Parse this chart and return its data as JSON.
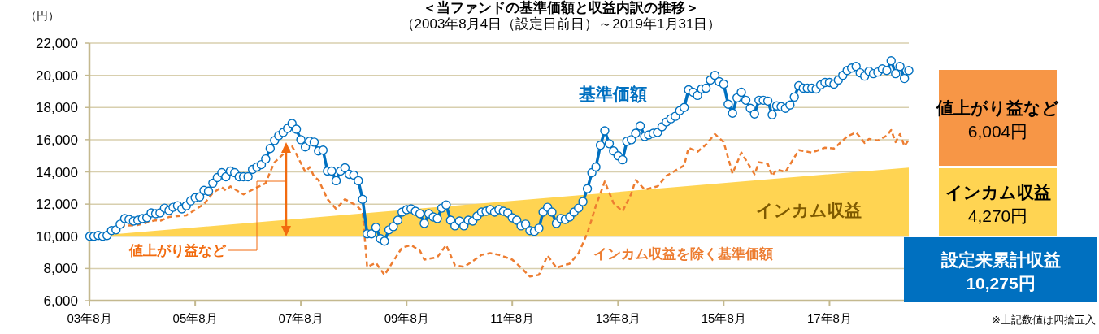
{
  "chart_data": [
    {
      "type": "line",
      "title": "＜当ファンドの基準価額と収益内訳の推移＞",
      "subtitle": "（2003年8月4日（設定日前日）～2019年1月31日）",
      "ylabel": "（円）",
      "xlim": [
        "2003-08",
        "2019-01-31"
      ],
      "xticks": [
        {
          "value": "2003-08",
          "label": "03年8月"
        },
        {
          "value": "2005-08",
          "label": "05年8月"
        },
        {
          "value": "2007-08",
          "label": "07年8月"
        },
        {
          "value": "2009-08",
          "label": "09年8月"
        },
        {
          "value": "2011-08",
          "label": "11年8月"
        },
        {
          "value": "2013-08",
          "label": "13年8月"
        },
        {
          "value": "2015-08",
          "label": "15年8月"
        },
        {
          "value": "2017-08",
          "label": "17年8月"
        }
      ],
      "ylim": [
        6000,
        22000
      ],
      "yticks": [
        {
          "value": 6000,
          "label": "6,000"
        },
        {
          "value": 8000,
          "label": "8,000"
        },
        {
          "value": 10000,
          "label": "10,000"
        },
        {
          "value": 12000,
          "label": "12,000"
        },
        {
          "value": 14000,
          "label": "14,000"
        },
        {
          "value": 16000,
          "label": "16,000"
        },
        {
          "value": 18000,
          "label": "18,000"
        },
        {
          "value": 20000,
          "label": "20,000"
        },
        {
          "value": 22000,
          "label": "22,000"
        }
      ],
      "grid": "y",
      "legend": false,
      "annotations": [
        "値上がり益など"
      ],
      "series": [
        {
          "name": "インカム収益",
          "type": "area",
          "color": "#ffd452",
          "x": [
            "2003-08-04",
            "2019-01-31"
          ],
          "values": [
            10000,
            14270
          ]
        },
        {
          "name": "インカム収益を除く基準価額",
          "color": "#ed7d31",
          "line_style": "dashed",
          "marker": "none",
          "x": [
            "2004-03",
            "2004-07",
            "2004-09",
            "2004-11",
            "2004-12",
            "2005-02",
            "2005-04",
            "2005-06",
            "2005-08",
            "2005-10",
            "2005-12",
            "2006-02",
            "2006-03",
            "2006-04",
            "2006-06",
            "2006-07",
            "2006-09",
            "2006-12",
            "2007-01",
            "2007-02",
            "2007-04",
            "2007-06",
            "2007-07",
            "2007-09",
            "2007-10",
            "2007-11",
            "2007-12",
            "2008-02",
            "2008-04",
            "2008-06",
            "2008-08",
            "2008-09",
            "2008-10",
            "2008-11",
            "2009-01",
            "2009-03",
            "2009-05",
            "2009-07",
            "2009-09",
            "2009-11",
            "2009-12",
            "2010-03",
            "2010-05",
            "2010-07",
            "2010-09",
            "2010-11",
            "2011-01",
            "2011-03",
            "2011-05",
            "2011-08",
            "2011-10",
            "2011-12",
            "2012-02",
            "2012-04",
            "2012-06",
            "2012-09",
            "2012-11",
            "2013-01",
            "2013-03",
            "2013-05",
            "2013-07",
            "2013-09",
            "2013-11",
            "2013-12",
            "2014-02",
            "2014-05",
            "2014-07",
            "2014-11",
            "2014-12",
            "2015-02",
            "2015-04",
            "2015-06",
            "2015-08",
            "2015-10",
            "2015-12",
            "2016-03",
            "2016-04",
            "2016-06",
            "2016-07",
            "2016-08",
            "2016-10",
            "2017-01",
            "2017-04",
            "2017-07",
            "2017-09",
            "2017-12",
            "2018-02",
            "2018-04",
            "2018-05",
            "2018-07",
            "2018-09",
            "2018-10",
            "2018-11",
            "2018-12",
            "2019-01",
            "2019-01-31"
          ],
          "values": [
            10650,
            10700,
            10850,
            11000,
            10950,
            11200,
            11250,
            11300,
            11650,
            12000,
            12700,
            13050,
            12850,
            13100,
            12750,
            12600,
            12900,
            13300,
            14000,
            14600,
            15100,
            15600,
            15100,
            14000,
            14300,
            13700,
            13500,
            12300,
            11700,
            12300,
            12000,
            11800,
            11500,
            8100,
            8350,
            7600,
            8450,
            9300,
            9450,
            9100,
            8550,
            8700,
            9450,
            8200,
            8100,
            8450,
            8850,
            8950,
            8850,
            8550,
            8050,
            7500,
            7600,
            8800,
            8050,
            8300,
            8950,
            10200,
            11900,
            13400,
            12050,
            11550,
            12650,
            13500,
            12900,
            13100,
            13750,
            14400,
            15500,
            15250,
            15700,
            16350,
            15850,
            13900,
            15200,
            13850,
            14600,
            14500,
            13750,
            14150,
            14000,
            15350,
            15200,
            15500,
            15450,
            16200,
            16450,
            15800,
            16050,
            15950,
            16250,
            16600,
            15850,
            16350,
            15600,
            16000
          ]
        },
        {
          "name": "基準価額",
          "color": "#0070c0",
          "line_style": "solid",
          "marker": "circle",
          "x": [
            "2003-08-04",
            "2003-09",
            "2003-10",
            "2003-11",
            "2003-12",
            "2004-01",
            "2004-02",
            "2004-03",
            "2004-04",
            "2004-05",
            "2004-06",
            "2004-07",
            "2004-08",
            "2004-09",
            "2004-10",
            "2004-11",
            "2004-12",
            "2005-01",
            "2005-02",
            "2005-03",
            "2005-04",
            "2005-05",
            "2005-06",
            "2005-07",
            "2005-08",
            "2005-09",
            "2005-10",
            "2005-11",
            "2005-12",
            "2006-01",
            "2006-02",
            "2006-03",
            "2006-04",
            "2006-05",
            "2006-06",
            "2006-07",
            "2006-08",
            "2006-09",
            "2006-10",
            "2006-11",
            "2006-12",
            "2007-01",
            "2007-02",
            "2007-03",
            "2007-04",
            "2007-05",
            "2007-06",
            "2007-07",
            "2007-08",
            "2007-09",
            "2007-10",
            "2007-11",
            "2007-12",
            "2008-01",
            "2008-02",
            "2008-03",
            "2008-04",
            "2008-05",
            "2008-06",
            "2008-07",
            "2008-08",
            "2008-09",
            "2008-10",
            "2008-11",
            "2008-12",
            "2009-01",
            "2009-02",
            "2009-03",
            "2009-04",
            "2009-05",
            "2009-06",
            "2009-07",
            "2009-08",
            "2009-09",
            "2009-10",
            "2009-11",
            "2009-12",
            "2010-01",
            "2010-02",
            "2010-03",
            "2010-04",
            "2010-05",
            "2010-06",
            "2010-07",
            "2010-08",
            "2010-09",
            "2010-10",
            "2010-11",
            "2010-12",
            "2011-01",
            "2011-02",
            "2011-03",
            "2011-04",
            "2011-05",
            "2011-06",
            "2011-07",
            "2011-08",
            "2011-09",
            "2011-10",
            "2011-11",
            "2011-12",
            "2012-01",
            "2012-02",
            "2012-03",
            "2012-04",
            "2012-05",
            "2012-06",
            "2012-07",
            "2012-08",
            "2012-09",
            "2012-10",
            "2012-11",
            "2012-12",
            "2013-01",
            "2013-02",
            "2013-03",
            "2013-04",
            "2013-05",
            "2013-06",
            "2013-07",
            "2013-08",
            "2013-09",
            "2013-10",
            "2013-11",
            "2013-12",
            "2014-01",
            "2014-02",
            "2014-03",
            "2014-04",
            "2014-05",
            "2014-06",
            "2014-07",
            "2014-08",
            "2014-09",
            "2014-10",
            "2014-11",
            "2014-12",
            "2015-01",
            "2015-02",
            "2015-03",
            "2015-04",
            "2015-05",
            "2015-06",
            "2015-07",
            "2015-08",
            "2015-09",
            "2015-10",
            "2015-11",
            "2015-12",
            "2016-01",
            "2016-02",
            "2016-03",
            "2016-04",
            "2016-05",
            "2016-06",
            "2016-07",
            "2016-08",
            "2016-09",
            "2016-10",
            "2016-11",
            "2016-12",
            "2017-01",
            "2017-02",
            "2017-03",
            "2017-04",
            "2017-05",
            "2017-06",
            "2017-07",
            "2017-08",
            "2017-09",
            "2017-10",
            "2017-11",
            "2017-12",
            "2018-01",
            "2018-02",
            "2018-03",
            "2018-04",
            "2018-05",
            "2018-06",
            "2018-07",
            "2018-08",
            "2018-09",
            "2018-10",
            "2018-11",
            "2018-12",
            "2019-01",
            "2019-01-31"
          ],
          "values": [
            10000,
            10000,
            10050,
            10000,
            10050,
            10350,
            10400,
            10750,
            11100,
            11050,
            10950,
            11000,
            11100,
            11150,
            11450,
            11400,
            11450,
            11750,
            11600,
            11800,
            11900,
            11700,
            11900,
            12200,
            12400,
            12450,
            12850,
            12800,
            13300,
            13650,
            13950,
            13700,
            14050,
            13950,
            13700,
            13700,
            13700,
            14150,
            14300,
            14450,
            14800,
            15450,
            15950,
            16250,
            16450,
            16700,
            17000,
            16650,
            16000,
            15550,
            15900,
            15850,
            15300,
            15350,
            14050,
            14050,
            13450,
            14050,
            14250,
            13850,
            13800,
            13450,
            12300,
            10150,
            10150,
            10550,
            9850,
            9700,
            10400,
            10600,
            11000,
            11500,
            11650,
            11700,
            11550,
            11400,
            10800,
            11400,
            11200,
            11100,
            11750,
            11950,
            11000,
            10650,
            10950,
            10650,
            11000,
            10950,
            11250,
            11500,
            11550,
            11650,
            11500,
            11650,
            11550,
            11450,
            11150,
            11000,
            10650,
            10750,
            10350,
            10300,
            10500,
            11500,
            11800,
            11500,
            10800,
            11100,
            11050,
            11200,
            11500,
            11750,
            12150,
            12950,
            13950,
            14300,
            15650,
            16550,
            15750,
            15300,
            15000,
            14750,
            15900,
            16000,
            16400,
            16850,
            16200,
            16300,
            16400,
            16450,
            16800,
            17100,
            17300,
            17450,
            17800,
            18000,
            19100,
            18950,
            18750,
            19150,
            19200,
            19700,
            20000,
            19600,
            19450,
            18200,
            17650,
            18600,
            18950,
            18450,
            17950,
            17600,
            18450,
            18450,
            18400,
            17550,
            18100,
            18050,
            17950,
            18150,
            18650,
            19350,
            19200,
            19200,
            19200,
            19150,
            19400,
            19550,
            19550,
            19450,
            19700,
            20000,
            20300,
            20450,
            20550,
            20150,
            19950,
            20250,
            20100,
            20200,
            20400,
            20300,
            20900,
            20100,
            20550,
            19800,
            20300
          ]
        }
      ]
    },
    {
      "type": "other",
      "annotations": [
        "値上がり益など",
        "6,004円",
        "インカム収益",
        "4,270円",
        "設定来累計収益",
        "10,275円",
        "※上記数値は四捨五入"
      ]
    }
  ]
}
